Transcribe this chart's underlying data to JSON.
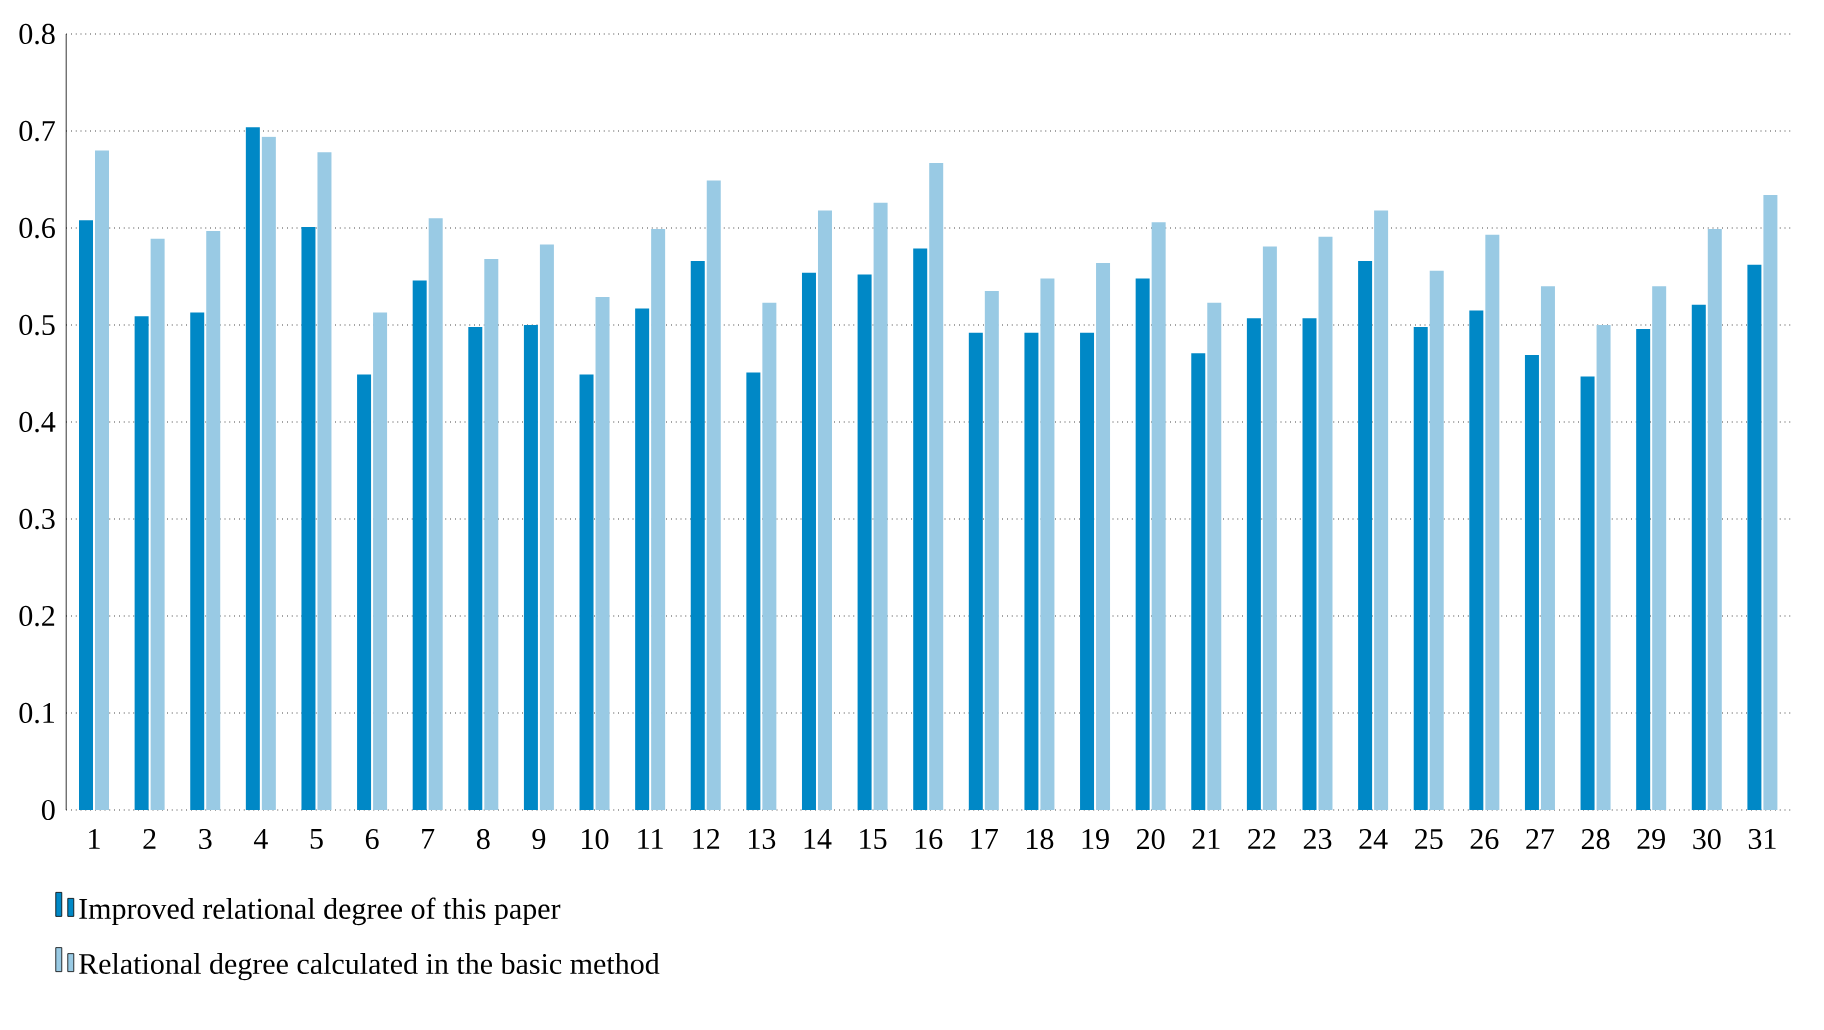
{
  "chart_data": {
    "type": "bar",
    "categories": [
      "1",
      "2",
      "3",
      "4",
      "5",
      "6",
      "7",
      "8",
      "9",
      "10",
      "11",
      "12",
      "13",
      "14",
      "15",
      "16",
      "17",
      "18",
      "19",
      "20",
      "21",
      "22",
      "23",
      "24",
      "25",
      "26",
      "27",
      "28",
      "29",
      "30",
      "31"
    ],
    "series": [
      {
        "name": "Improved relational degree of this paper",
        "color": "#0088c6",
        "values": [
          0.608,
          0.509,
          0.513,
          0.704,
          0.601,
          0.449,
          0.546,
          0.498,
          0.5,
          0.449,
          0.517,
          0.566,
          0.451,
          0.554,
          0.552,
          0.579,
          0.492,
          0.492,
          0.492,
          0.548,
          0.471,
          0.507,
          0.507,
          0.566,
          0.498,
          0.515,
          0.469,
          0.447,
          0.496,
          0.521,
          0.562
        ]
      },
      {
        "name": "Relational degree calculated in the basic method",
        "color": "#99cae4",
        "values": [
          0.68,
          0.589,
          0.597,
          0.694,
          0.678,
          0.513,
          0.61,
          0.568,
          0.583,
          0.529,
          0.599,
          0.649,
          0.523,
          0.618,
          0.626,
          0.667,
          0.535,
          0.548,
          0.564,
          0.606,
          0.523,
          0.581,
          0.591,
          0.618,
          0.556,
          0.593,
          0.54,
          0.5,
          0.54,
          0.599,
          0.634
        ]
      }
    ],
    "ylim": [
      0,
      0.8
    ],
    "yticks": [
      0,
      0.1,
      0.2,
      0.3,
      0.4,
      0.5,
      0.6,
      0.7,
      0.8
    ],
    "grid": "y",
    "legend": "bottom left"
  }
}
